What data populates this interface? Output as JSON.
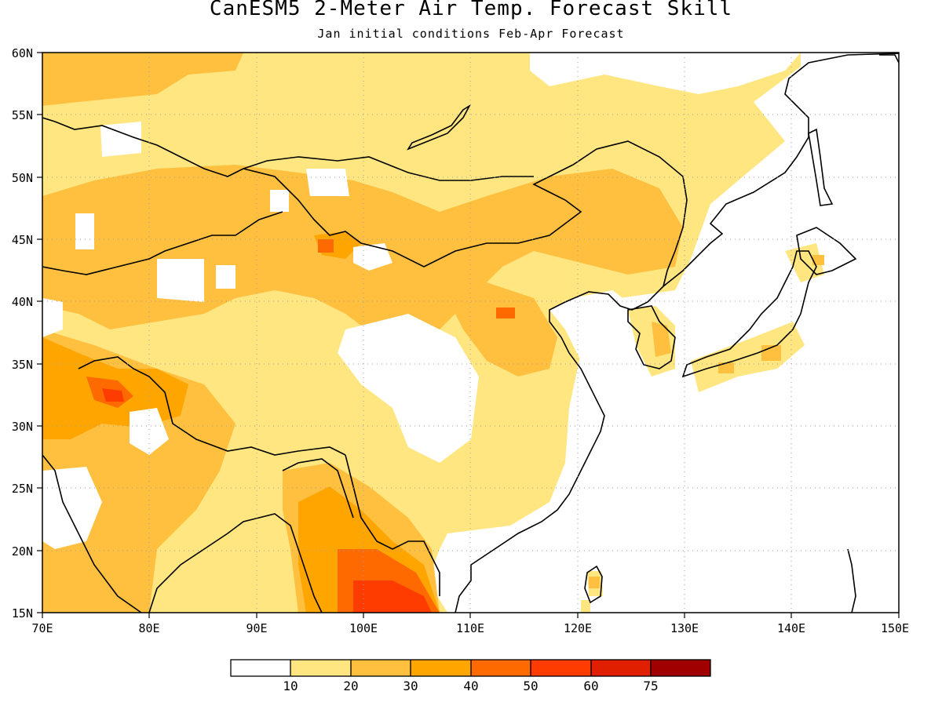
{
  "title": "CanESM5 2-Meter Air Temp. Forecast Skill",
  "subtitle": "Jan initial conditions  Feb-Apr Forecast",
  "map": {
    "lon_range": [
      70,
      150
    ],
    "lat_range": [
      15,
      60
    ],
    "lon_ticks": [
      "70E",
      "80E",
      "90E",
      "100E",
      "110E",
      "120E",
      "130E",
      "140E",
      "150E"
    ],
    "lat_ticks": [
      "15N",
      "20N",
      "25N",
      "30N",
      "35N",
      "40N",
      "45N",
      "50N",
      "55N",
      "60N"
    ],
    "gridlines": "dotted"
  },
  "colorbar": {
    "levels": [
      "10",
      "20",
      "30",
      "40",
      "50",
      "60",
      "75"
    ],
    "colors": [
      "#ffffff",
      "#ffe680",
      "#ffc040",
      "#ffa500",
      "#ff6a00",
      "#ff3c00",
      "#e01e00",
      "#a00000"
    ]
  }
}
